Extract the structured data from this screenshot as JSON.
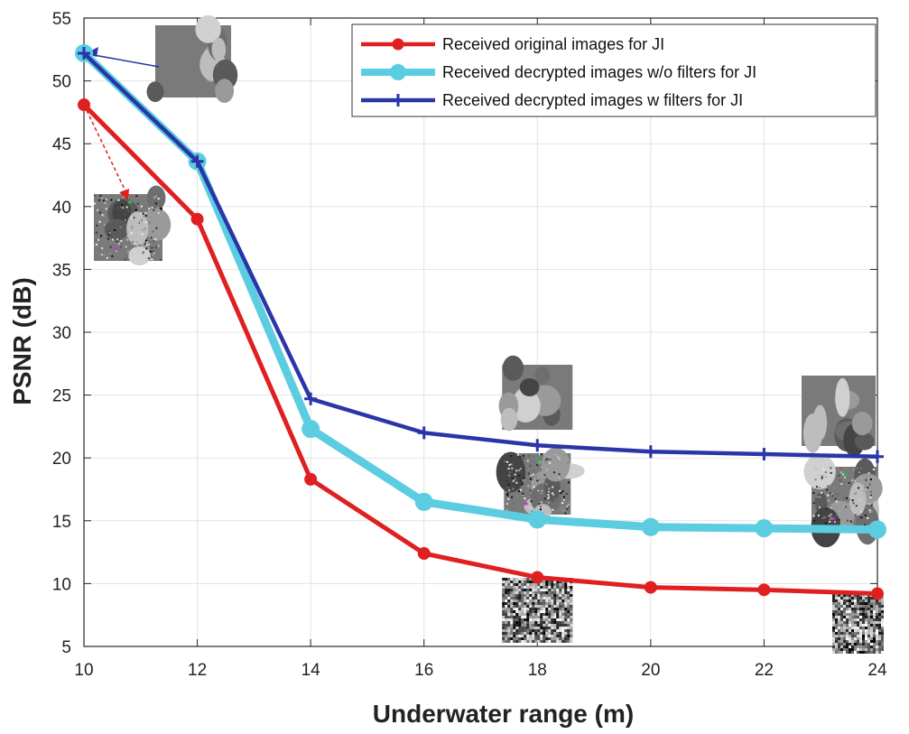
{
  "chart_data": {
    "type": "line",
    "title": "",
    "xlabel": "Underwater range (m)",
    "ylabel": "PSNR (dB)",
    "xlim": [
      10,
      24
    ],
    "ylim": [
      5,
      55
    ],
    "x": [
      10,
      12,
      14,
      16,
      18,
      20,
      22,
      24
    ],
    "xticks": [
      "10",
      "12",
      "14",
      "16",
      "18",
      "20",
      "22",
      "24"
    ],
    "yticks": [
      "5",
      "10",
      "15",
      "20",
      "25",
      "30",
      "35",
      "40",
      "45",
      "50",
      "55"
    ],
    "grid": true,
    "legend_position": "top-right",
    "series": [
      {
        "name": "Received original images for JI",
        "color": "#e02020",
        "marker": "circle",
        "values": [
          48.1,
          39.0,
          18.3,
          12.4,
          10.5,
          9.7,
          9.5,
          9.2
        ]
      },
      {
        "name": "Received decrypted images w/o filters for JI",
        "color": "#5ccde0",
        "marker": "circle",
        "values": [
          52.2,
          43.6,
          22.3,
          16.5,
          15.1,
          14.5,
          14.4,
          14.3
        ]
      },
      {
        "name": "Received decrypted images w filters for JI",
        "color": "#2a35a8",
        "marker": "plus",
        "values": [
          52.2,
          43.6,
          24.7,
          22.0,
          21.0,
          20.5,
          20.3,
          20.1
        ]
      }
    ],
    "annotations": [
      {
        "label": "decrypted image thumbnail (filtered)",
        "x": 10,
        "y": 52.2,
        "kind": "sharp"
      },
      {
        "label": "decrypted image thumbnail (no filter)",
        "x": 10,
        "y": 48.1,
        "kind": "noisy"
      },
      {
        "label": "decrypted image thumbnail (filtered)",
        "x": 18,
        "y": 21.0,
        "kind": "sharp"
      },
      {
        "label": "decrypted image thumbnail (no filter)",
        "x": 18,
        "y": 15.1,
        "kind": "noisy"
      },
      {
        "label": "received encrypted image thumbnail",
        "x": 18,
        "y": 10.5,
        "kind": "static"
      },
      {
        "label": "decrypted image thumbnail (filtered)",
        "x": 24,
        "y": 20.1,
        "kind": "sharp"
      },
      {
        "label": "decrypted image thumbnail (no filter)",
        "x": 24,
        "y": 14.3,
        "kind": "noisy"
      },
      {
        "label": "received encrypted image thumbnail",
        "x": 24,
        "y": 9.2,
        "kind": "static"
      }
    ]
  }
}
